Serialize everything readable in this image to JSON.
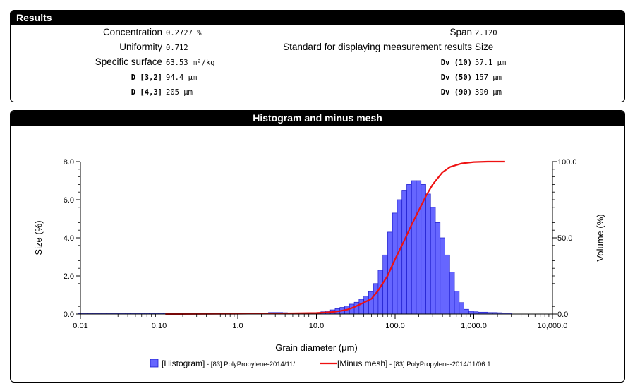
{
  "results": {
    "title": "Results",
    "left": [
      {
        "label": "Concentration",
        "value": "0.2727 %",
        "mono": false
      },
      {
        "label": "Uniformity",
        "value": "0.712",
        "mono": false
      },
      {
        "label": "Specific surface",
        "value": "63.53 m²/kg",
        "mono": false
      },
      {
        "label": "D [3,2]",
        "value": "94.4 µm",
        "mono": true
      },
      {
        "label": "D [4,3]",
        "value": "205 µm",
        "mono": true
      }
    ],
    "right": [
      {
        "label": "Span",
        "value": "2.120",
        "mono": false
      },
      {
        "label": "Standard for displaying measurement results",
        "value": "Size",
        "mono": false,
        "value_style": "sans"
      },
      {
        "label": "Dv (10)",
        "value": "57.1 µm",
        "mono": true
      },
      {
        "label": "Dv (50)",
        "value": "157 µm",
        "mono": true
      },
      {
        "label": "Dv (90)",
        "value": "390 µm",
        "mono": true
      }
    ]
  },
  "chart_panel": {
    "title": "Histogram and minus mesh"
  },
  "chart_data": {
    "type": "bar",
    "x_scale": "log",
    "xlim": [
      0.01,
      10000
    ],
    "x_ticks": [
      "0.01",
      "0.10",
      "1.0",
      "10.0",
      "100.0",
      "1,000.0",
      "10,000.0"
    ],
    "xlabel": "Grain diameter (μm)",
    "ylabel_left": "Size (%)",
    "ylim_left": [
      0,
      8
    ],
    "y_ticks_left": [
      "0.0",
      "2.0",
      "4.0",
      "6.0",
      "8.0"
    ],
    "ylabel_right": "Volume (%)",
    "ylim_right": [
      0,
      100
    ],
    "y_ticks_right": [
      "0.0",
      "50.0",
      "100.0"
    ],
    "grid": false,
    "legend_position": "bottom-center",
    "series": [
      {
        "name": "[Histogram] - [83] PolyPropylene-2014/11/",
        "legend_key": "[Histogram]",
        "legend_rest": " - [83] PolyPropylene-2014/11/",
        "type": "bar",
        "color": "#6666ff",
        "edge_color": "#1a1acc",
        "x": [
          0.01,
          0.0115,
          0.0132,
          0.0152,
          0.0174,
          0.02,
          0.023,
          0.0265,
          0.0305,
          0.035,
          0.04,
          0.046,
          0.053,
          0.061,
          0.07,
          0.08,
          0.092,
          0.106,
          0.122,
          0.14,
          0.161,
          0.185,
          0.213,
          0.245,
          0.282,
          0.324,
          0.372,
          0.428,
          0.492,
          0.566,
          0.651,
          0.748,
          0.86,
          0.99,
          1.14,
          1.31,
          1.5,
          1.73,
          1.99,
          2.29,
          2.63,
          3.02,
          3.47,
          3.99,
          4.59,
          5.28,
          6.07,
          6.98,
          8.03,
          9.23,
          10.6,
          12.2,
          14.0,
          16.1,
          18.5,
          21.3,
          24.5,
          28.2,
          32.4,
          37.3,
          42.9,
          49.3,
          56.7,
          65.2,
          75.0,
          86.2,
          99.1,
          114,
          131,
          151,
          173,
          199,
          229,
          263,
          303,
          348,
          400,
          460,
          529,
          608,
          700,
          805,
          925,
          1064,
          1223,
          1407,
          1618,
          1860,
          2139,
          2460,
          2829
        ],
        "values": [
          0.02,
          0.02,
          0.02,
          0.02,
          0.02,
          0.02,
          0.02,
          0.02,
          0.02,
          0.02,
          0.02,
          0.02,
          0.02,
          0.02,
          0.02,
          0.02,
          0.02,
          0.02,
          0.02,
          0.02,
          0.02,
          0.02,
          0.02,
          0.02,
          0.02,
          0.02,
          0.02,
          0.02,
          0.02,
          0.02,
          0.02,
          0.02,
          0.02,
          0.02,
          0.02,
          0.02,
          0.02,
          0.02,
          0.02,
          0.03,
          0.08,
          0.08,
          0.08,
          0.07,
          0.06,
          0.05,
          0.05,
          0.05,
          0.05,
          0.06,
          0.08,
          0.12,
          0.16,
          0.22,
          0.28,
          0.35,
          0.42,
          0.52,
          0.62,
          0.78,
          0.95,
          1.18,
          1.6,
          2.3,
          3.1,
          4.3,
          5.3,
          6.0,
          6.5,
          6.8,
          7.0,
          7.0,
          6.8,
          6.3,
          5.6,
          4.8,
          4.0,
          3.1,
          2.2,
          1.2,
          0.6,
          0.25,
          0.15,
          0.12,
          0.1,
          0.1,
          0.08,
          0.08,
          0.07,
          0.06,
          0.05
        ]
      },
      {
        "name": "[Minus mesh] - [83] PolyPropylene-2014/11/06 1",
        "legend_key": "[Minus mesh]",
        "legend_rest": " - [83] PolyPropylene-2014/11/06 1",
        "type": "line",
        "axis": "right",
        "color": "#ee1111",
        "x": [
          0.12,
          1.0,
          5.0,
          10.0,
          15.0,
          20.0,
          25.0,
          30.0,
          40.0,
          50.0,
          60.0,
          80.0,
          100.0,
          130.0,
          160.0,
          200.0,
          250.0,
          300.0,
          400.0,
          500.0,
          700.0,
          1000.0,
          1500.0,
          2500.0
        ],
        "values": [
          0.0,
          0.2,
          0.5,
          0.7,
          1.2,
          2.0,
          3.0,
          4.5,
          7.5,
          10.0,
          15.0,
          25.0,
          36.0,
          48.0,
          58.0,
          68.0,
          78.0,
          85.0,
          93.0,
          96.5,
          98.8,
          99.7,
          100.0,
          100.0
        ]
      }
    ]
  }
}
